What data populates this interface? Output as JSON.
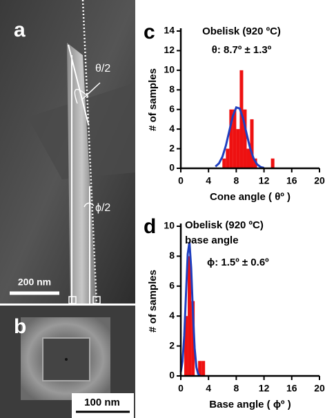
{
  "panels": {
    "a": {
      "label": "a",
      "annotations": [
        "θ/2",
        "ϕ/2"
      ],
      "scale_bar": "200 nm"
    },
    "b": {
      "label": "b",
      "scale_bar": "100 nm"
    }
  },
  "chart_data": [
    {
      "type": "histogram",
      "panel_label": "c",
      "annotations": [
        "Obelisk (920 ºC)",
        "θ: 8.7º ± 1.3º"
      ],
      "xlabel": "Cone angle ( θº )",
      "ylabel": "# of samples",
      "bins": [
        6.0,
        6.5,
        7.0,
        7.5,
        8.0,
        8.5,
        9.0,
        9.5,
        10.0,
        10.5,
        11.0,
        11.5,
        12.0,
        12.5,
        13.0,
        13.5
      ],
      "values": [
        1,
        2,
        6,
        6,
        4,
        10,
        6,
        2,
        5,
        1,
        0,
        0,
        0,
        0,
        1
      ],
      "color": "#ee1111",
      "fit": {
        "x": [
          5,
          5.5,
          6,
          6.5,
          7,
          7.5,
          8,
          8.5,
          9,
          9.5,
          10,
          10.5,
          11,
          11.5,
          12
        ],
        "values": [
          0.18,
          0.5,
          1.17,
          2.31,
          3.82,
          5.31,
          6.21,
          6.1,
          5.05,
          3.5,
          2.05,
          1.0,
          0.41,
          0.14,
          0.04
        ],
        "color": "#1f3fbf"
      },
      "xlim": [
        0,
        20
      ],
      "xticks": [
        0,
        4,
        8,
        12,
        16,
        20
      ],
      "ylim": [
        0,
        14
      ],
      "yticks": [
        0,
        2,
        4,
        6,
        8,
        10,
        12,
        14
      ]
    },
    {
      "type": "histogram",
      "panel_label": "d",
      "annotations": [
        "Obelisk (920 ºC)",
        "base angle",
        "ϕ: 1.5º ± 0.6º"
      ],
      "xlabel": "Base angle ( ϕº )",
      "ylabel": "# of samples",
      "bins": [
        0.5,
        1.0,
        1.5,
        2.0,
        2.5,
        3.0,
        3.5
      ],
      "values": [
        4,
        8,
        5,
        0,
        1,
        1
      ],
      "color": "#ee1111",
      "fit": {
        "x": [
          0,
          0.25,
          0.5,
          0.75,
          1,
          1.25,
          1.5,
          1.75,
          2,
          2.25,
          2.5,
          2.75
        ],
        "values": [
          0.26,
          0.97,
          2.68,
          5.46,
          8.15,
          8.94,
          7.21,
          4.26,
          1.85,
          0.59,
          0.14,
          0.02
        ],
        "color": "#1f3fbf"
      },
      "xlim": [
        0,
        20
      ],
      "xticks": [
        0,
        4,
        8,
        12,
        16,
        20
      ],
      "ylim": [
        0,
        10
      ],
      "yticks": [
        0,
        2,
        4,
        6,
        8,
        10
      ]
    }
  ]
}
